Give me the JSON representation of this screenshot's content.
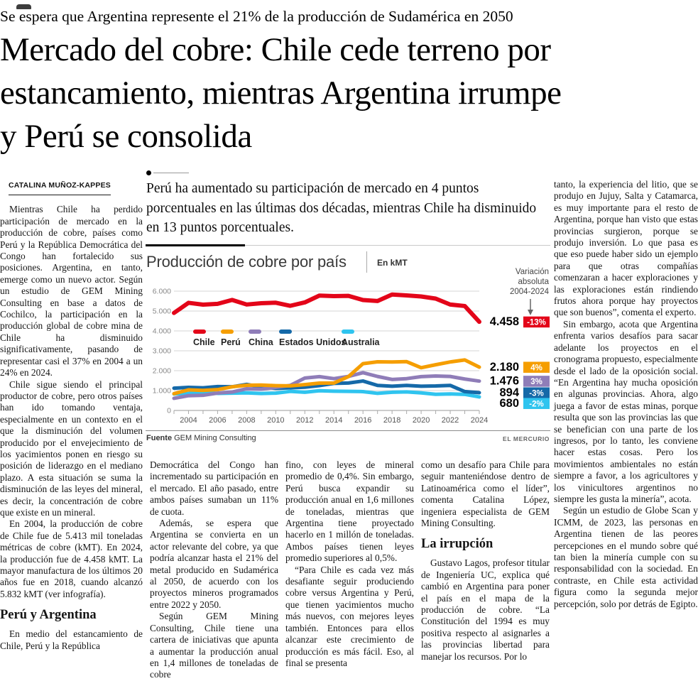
{
  "masthead": {
    "kicker": "Se espera que Argentina represente el 21% de la producción de Sudamérica en 2050",
    "headline": "Mercado del cobre: Chile cede terreno por estancamiento, mientras Argentina irrumpe y Perú se consolida"
  },
  "article": {
    "byline": "CATALINA MUÑOZ-KAPPES",
    "lede": "Perú ha aumentado su participación de mercado en 4 puntos porcentuales en las últimas dos décadas, mientras Chile ha disminuido en 13 puntos porcentuales.",
    "columns": {
      "left": [
        {
          "type": "p",
          "indent": true,
          "text": "Mientras Chile ha perdido participación de mercado en la producción de cobre, países como Perú y la República Democrática del Congo han fortalecido sus posiciones. Argentina, en tanto, emerge como un nuevo actor. Según un estudio de GEM Mining Consulting en base a datos de Cochilco, la participación en la producción global de cobre mina de Chile ha disminuido significativamente, pasando de representar casi el 37% en 2004 a un 24% en 2024."
        },
        {
          "type": "p",
          "indent": true,
          "text": "Chile sigue siendo el principal productor de cobre, pero otros países han ido tomando ventaja, especialmente en un contexto en el que la disminución del volumen producido por el envejecimiento de los yacimientos ponen en riesgo su posición de liderazgo en el mediano plazo. A esta situación se suma la disminución de las leyes del mineral, es decir, la concentración de cobre que existe en un mineral."
        },
        {
          "type": "p",
          "indent": true,
          "text": "En 2004, la producción de cobre de Chile fue de 5.413 mil toneladas métricas de cobre (kMT). En 2024, la producción fue de 4.458 kMT. La mayor manufactura de los últimos 20 años fue en 2018, cuando alcanzó 5.832 kMT (ver infografía)."
        },
        {
          "type": "h",
          "text": "Perú y Argentina"
        },
        {
          "type": "p",
          "indent": true,
          "text": "En medio del estancamiento de Chile, Perú y la República"
        }
      ],
      "mid1": [
        {
          "type": "p",
          "indent": false,
          "text": "Democrática del Congo han incrementado su participación en el mercado. El año pasado, entre ambos países sumaban un 11% de cuota."
        },
        {
          "type": "p",
          "indent": true,
          "text": "Además, se espera que Argentina se convierta en un actor relevante del cobre, ya que podría alcanzar hasta el 21% del metal producido en Sudamérica al 2050, de acuerdo con los proyectos mineros programados entre 2022 y 2050."
        },
        {
          "type": "p",
          "indent": true,
          "text": "Según GEM Mining Consulting, Chile tiene una cartera de iniciativas que apunta a aumentar la producción anual en 1,4 millones de toneladas de cobre"
        }
      ],
      "mid2": [
        {
          "type": "p",
          "indent": false,
          "text": "fino, con leyes de mineral promedio de 0,4%. Sin embargo, Perú busca expandir su producción anual en 1,6 millones de toneladas, mientras que Argentina tiene proyectado hacerlo en 1 millón de toneladas. Ambos países tienen leyes promedio superiores al 0,5%."
        },
        {
          "type": "p",
          "indent": true,
          "text": "“Para Chile es cada vez más desafiante seguir produciendo cobre versus Argentina y Perú, que tienen yacimientos mucho más nuevos, con mejores leyes también. Entonces para ellos alcanzar este crecimiento de producción es más fácil. Eso, al final se presenta"
        }
      ],
      "mid3": [
        {
          "type": "p",
          "indent": false,
          "text": "como un desafío para Chile para seguir manteniéndose dentro de Latinoamérica como el líder”, comenta Catalina López, ingeniera especialista de GEM Mining Consulting."
        },
        {
          "type": "h",
          "text": "La irrupción"
        },
        {
          "type": "p",
          "indent": true,
          "text": "Gustavo Lagos, profesor titular de Ingeniería UC, explica qué cambió en Argentina para poner el país en el mapa de la producción de cobre. “La Constitución del 1994 es muy positiva respecto al asignarles a las provincias libertad para manejar los recursos. Por lo"
        }
      ],
      "right": [
        {
          "type": "p",
          "indent": false,
          "text": "tanto, la experiencia del litio, que se produjo en Jujuy, Salta y Catamarca, es muy importante para el resto de Argentina, porque han visto que estas provincias surgieron, porque se produjo inversión. Lo que pasa es que eso puede haber sido un ejemplo para que otras compañías comenzaran a hacer exploraciones y las exploraciones están rindiendo frutos ahora porque hay proyectos que son buenos”, comenta el experto."
        },
        {
          "type": "p",
          "indent": true,
          "text": "Sin embargo, acota que Argentina enfrenta varios desafíos para sacar adelante los proyectos en el cronograma propuesto, especialmente desde el lado de la oposición social. “En Argentina hay mucha oposición en algunas provincias. Ahora, algo juega a favor de estas minas, porque resulta que son las provincias las que se benefician con una parte de los ingresos, por lo tanto, les conviene hacer estas cosas. Pero los movimientos ambientales no están siempre a favor, a los agricultores y los vinicultores argentinos no siempre les gusta la minería”, acota."
        },
        {
          "type": "p",
          "indent": true,
          "text": "Según un estudio de Globe Scan y ICMM, de 2023, las personas en Argentina tienen de las peores percepciones en el mundo sobre qué tan bien la minería cumple con su responsabilidad con la sociedad. En contraste, en Chile esta actividad figura como la segunda mejor percepción, solo por detrás de Egipto."
        }
      ]
    }
  },
  "chart_data": {
    "type": "line",
    "title": "Producción de cobre por país",
    "units": "En kMT",
    "annotation": [
      "Variación",
      "absoluta",
      "2004-2024"
    ],
    "source_label": "Fuente",
    "source": "GEM Mining Consulting",
    "credit": "EL MERCURIO",
    "grid": true,
    "legend_position": "inside-left",
    "ylim": [
      0,
      6000
    ],
    "yticks": [
      {
        "v": 6000,
        "label": "6.000"
      },
      {
        "v": 5000,
        "label": "5.000"
      },
      {
        "v": 4000,
        "label": "4.000"
      },
      {
        "v": 3000,
        "label": "3.000"
      },
      {
        "v": 2000,
        "label": "2.000"
      },
      {
        "v": 1000,
        "label": "1.000"
      },
      {
        "v": 0,
        "label": "0"
      }
    ],
    "x": [
      2003,
      2004,
      2005,
      2006,
      2007,
      2008,
      2009,
      2010,
      2011,
      2012,
      2013,
      2014,
      2015,
      2016,
      2017,
      2018,
      2019,
      2020,
      2021,
      2022,
      2023,
      2024
    ],
    "x_tick_labels": [
      "2004",
      "2006",
      "2008",
      "2010",
      "2012",
      "2014",
      "2016",
      "2018",
      "2020",
      "2022",
      "2024"
    ],
    "series": [
      {
        "name": "Chile",
        "color": "#e30519",
        "end_label": "4.458",
        "change": "-13%",
        "values": [
          4904,
          5413,
          5321,
          5361,
          5557,
          5328,
          5394,
          5419,
          5263,
          5434,
          5776,
          5750,
          5764,
          5553,
          5504,
          5832,
          5787,
          5733,
          5625,
          5327,
          5252,
          4458
        ]
      },
      {
        "name": "Perú",
        "color": "#f59e00",
        "end_label": "2.180",
        "change": "4%",
        "values": [
          843,
          1036,
          1010,
          1048,
          1190,
          1268,
          1275,
          1247,
          1235,
          1299,
          1376,
          1378,
          1701,
          2354,
          2446,
          2437,
          2455,
          2150,
          2299,
          2439,
          2540,
          2180
        ]
      },
      {
        "name": "China",
        "color": "#8f7db8",
        "end_label": "1.476",
        "change": "3%",
        "values": [
          610,
          742,
          762,
          873,
          928,
          1090,
          1070,
          1160,
          1260,
          1630,
          1700,
          1600,
          1710,
          1900,
          1710,
          1560,
          1600,
          1700,
          1730,
          1710,
          1580,
          1476
        ]
      },
      {
        "name": "Estados Unidos",
        "color": "#1569a8",
        "end_label": "894",
        "change": "-3%",
        "values": [
          1120,
          1160,
          1140,
          1200,
          1190,
          1310,
          1180,
          1110,
          1140,
          1170,
          1250,
          1360,
          1380,
          1480,
          1260,
          1220,
          1260,
          1220,
          1230,
          1260,
          950,
          894
        ]
      },
      {
        "name": "Australia",
        "color": "#2fc4ef",
        "end_label": "680",
        "change": "-2%",
        "values": [
          830,
          854,
          930,
          859,
          870,
          886,
          854,
          870,
          958,
          914,
          990,
          970,
          960,
          948,
          860,
          913,
          934,
          885,
          813,
          830,
          810,
          680
        ]
      }
    ]
  }
}
